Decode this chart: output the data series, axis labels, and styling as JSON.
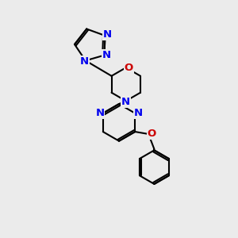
{
  "background_color": "#ebebeb",
  "bond_color": "#000000",
  "N_color": "#0000ee",
  "O_color": "#cc0000",
  "line_width": 1.5,
  "font_size": 9.5,
  "fig_size": [
    3.0,
    3.0
  ],
  "dpi": 100,
  "xlim": [
    -1,
    9
  ],
  "ylim": [
    -1,
    9
  ]
}
